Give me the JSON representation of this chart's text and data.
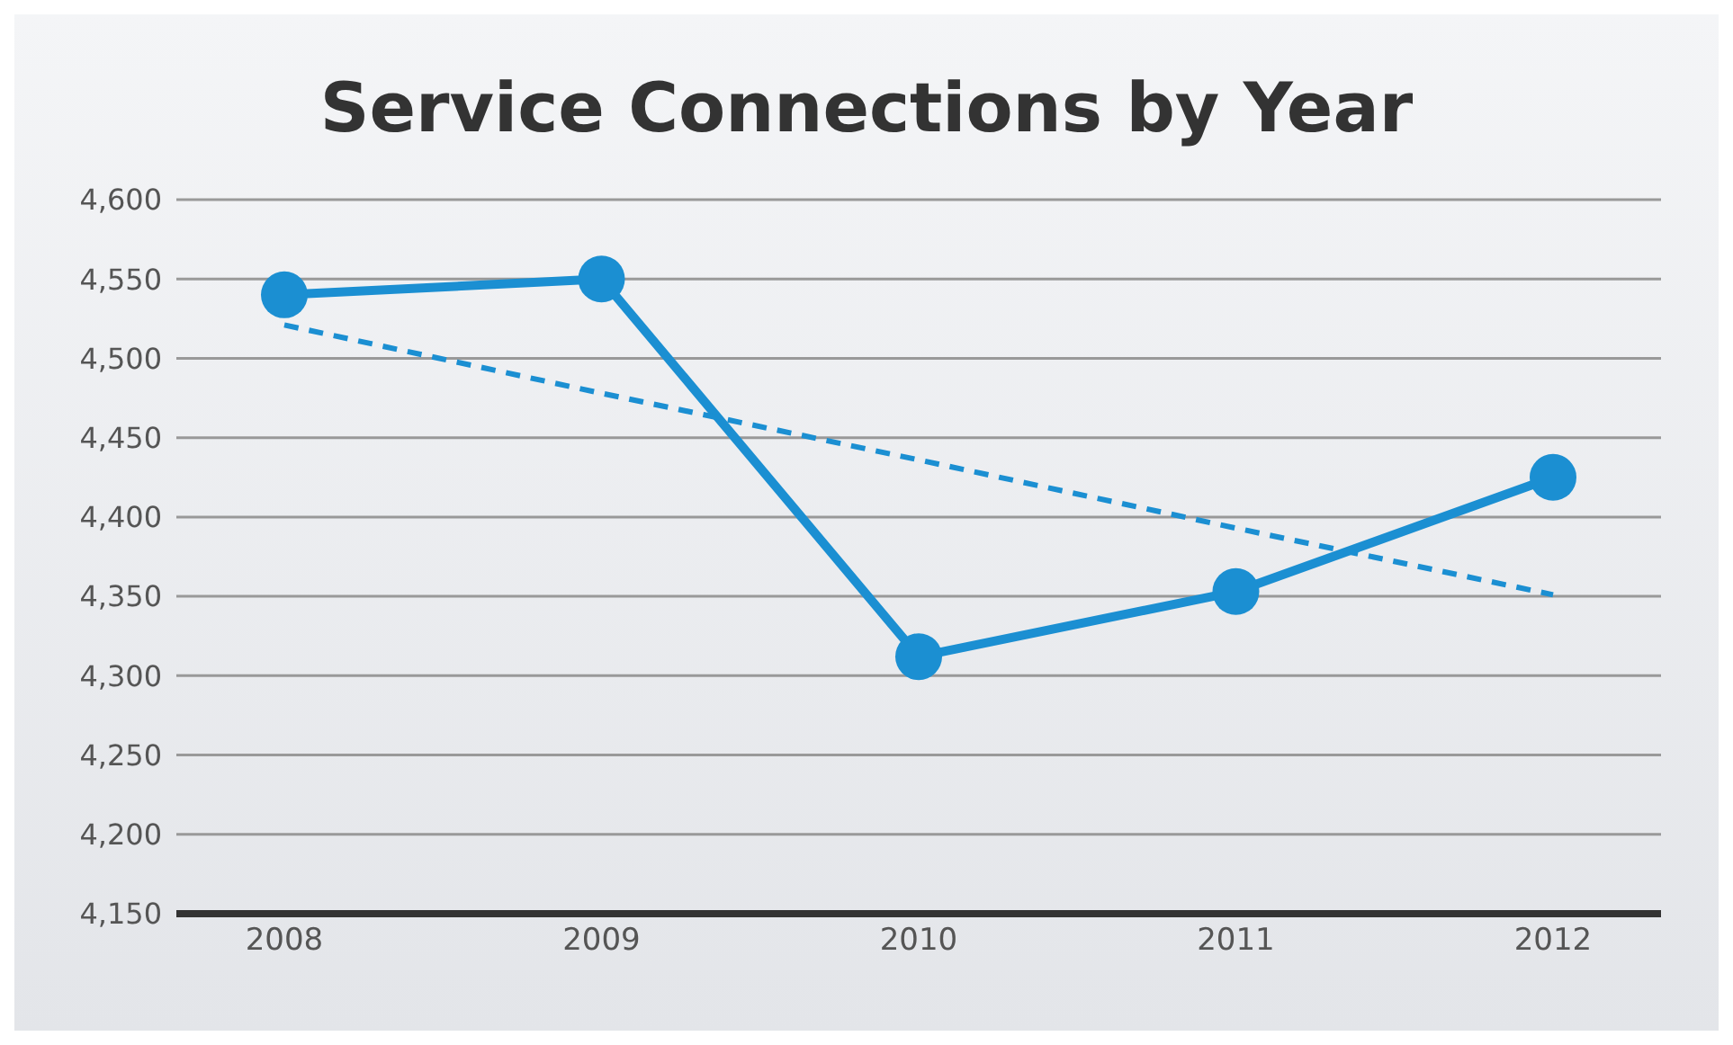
{
  "chart_data": {
    "type": "line",
    "title": "Service Connections by Year",
    "categories": [
      "2008",
      "2009",
      "2010",
      "2011",
      "2012"
    ],
    "series": [
      {
        "color": "#1b8fd2",
        "values": [
          4540,
          4550,
          4312,
          4353,
          4425
        ],
        "marker": "circle",
        "line_style": "solid"
      },
      {
        "color": "#1b8fd2",
        "values": [
          4521,
          4478,
          4436,
          4393,
          4351
        ],
        "marker": "none",
        "line_style": "dashed"
      }
    ],
    "ylim": [
      4150,
      4600
    ],
    "yticks": [
      {
        "value": 4150,
        "label": "4,150"
      },
      {
        "value": 4200,
        "label": "4,200"
      },
      {
        "value": 4250,
        "label": "4,250"
      },
      {
        "value": 4300,
        "label": "4,300"
      },
      {
        "value": 4350,
        "label": "4,350"
      },
      {
        "value": 4400,
        "label": "4,400"
      },
      {
        "value": 4450,
        "label": "4,450"
      },
      {
        "value": 4500,
        "label": "4,500"
      },
      {
        "value": 4550,
        "label": "4,550"
      },
      {
        "value": 4600,
        "label": "4,600"
      }
    ],
    "grid": "y"
  }
}
